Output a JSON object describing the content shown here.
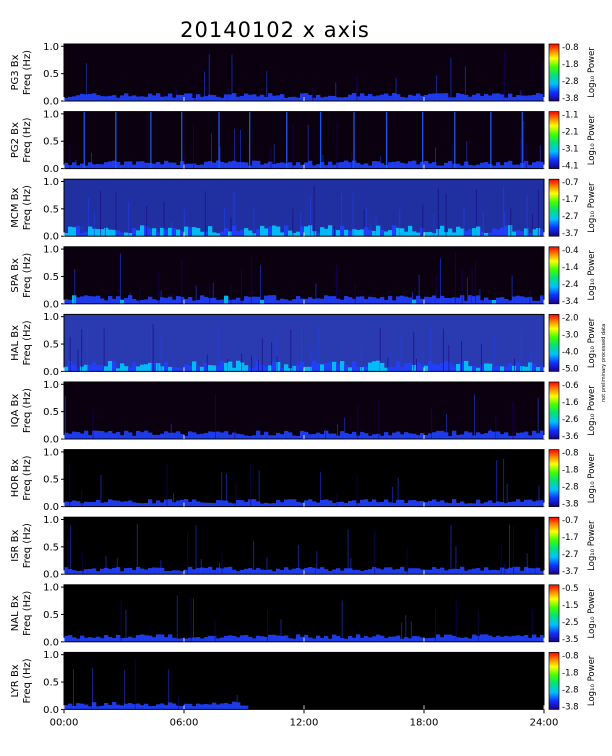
{
  "title": "20140102 x axis",
  "chart_data": {
    "type": "heatmap",
    "title": "20140102 x axis",
    "x_ticks": [
      "00:00",
      "06:00",
      "12:00",
      "18:00",
      "24:00"
    ],
    "y_ticks": [
      "0.0",
      "0.5",
      "1.0"
    ],
    "ylabel": "Freq (Hz)",
    "colorbar_label": "Log₁₀ Power",
    "panels": [
      {
        "station": "PG3 Bx",
        "colorbar_ticks": [
          "-0.8",
          "-1.8",
          "-2.8",
          "-3.8"
        ],
        "background": "#0a0010",
        "activity": 0.35
      },
      {
        "station": "PG2 Bx",
        "colorbar_ticks": [
          "-1.1",
          "-2.1",
          "-3.1",
          "-4.1"
        ],
        "background": "#0a0010",
        "activity": 0.35,
        "vertical_lines": true
      },
      {
        "station": "MCM Bx",
        "colorbar_ticks": [
          "-0.7",
          "-1.7",
          "-2.7",
          "-3.7"
        ],
        "background": "#2030a0",
        "activity": 0.85
      },
      {
        "station": "SPA Bx",
        "colorbar_ticks": [
          "-0.4",
          "-1.4",
          "-2.4",
          "-3.4"
        ],
        "background": "#0a0010",
        "activity": 0.45
      },
      {
        "station": "HAL Bx",
        "colorbar_ticks": [
          "-2.0",
          "-3.0",
          "-4.0",
          "-5.0"
        ],
        "background": "#2a3ab0",
        "activity": 0.8,
        "colorbar_note": "not preliminary processed data"
      },
      {
        "station": "IQA Bx",
        "colorbar_ticks": [
          "-0.6",
          "-1.6",
          "-2.6",
          "-3.6"
        ],
        "background": "#0a0010",
        "activity": 0.4
      },
      {
        "station": "HOR Bx",
        "colorbar_ticks": [
          "-0.8",
          "-1.8",
          "-2.8",
          "-3.8"
        ],
        "background": "#000000",
        "activity": 0.25
      },
      {
        "station": "ISR Bx",
        "colorbar_ticks": [
          "-0.7",
          "-1.7",
          "-2.7",
          "-3.7"
        ],
        "background": "#000000",
        "activity": 0.25
      },
      {
        "station": "NAL Bx",
        "colorbar_ticks": [
          "-0.5",
          "-1.5",
          "-2.5",
          "-3.5"
        ],
        "background": "#000000",
        "activity": 0.25
      },
      {
        "station": "LYR Bx",
        "colorbar_ticks": [
          "-0.8",
          "-1.8",
          "-2.8",
          "-3.8"
        ],
        "background": "#000000",
        "activity": 0.3,
        "data_end_hour": 9
      }
    ]
  }
}
